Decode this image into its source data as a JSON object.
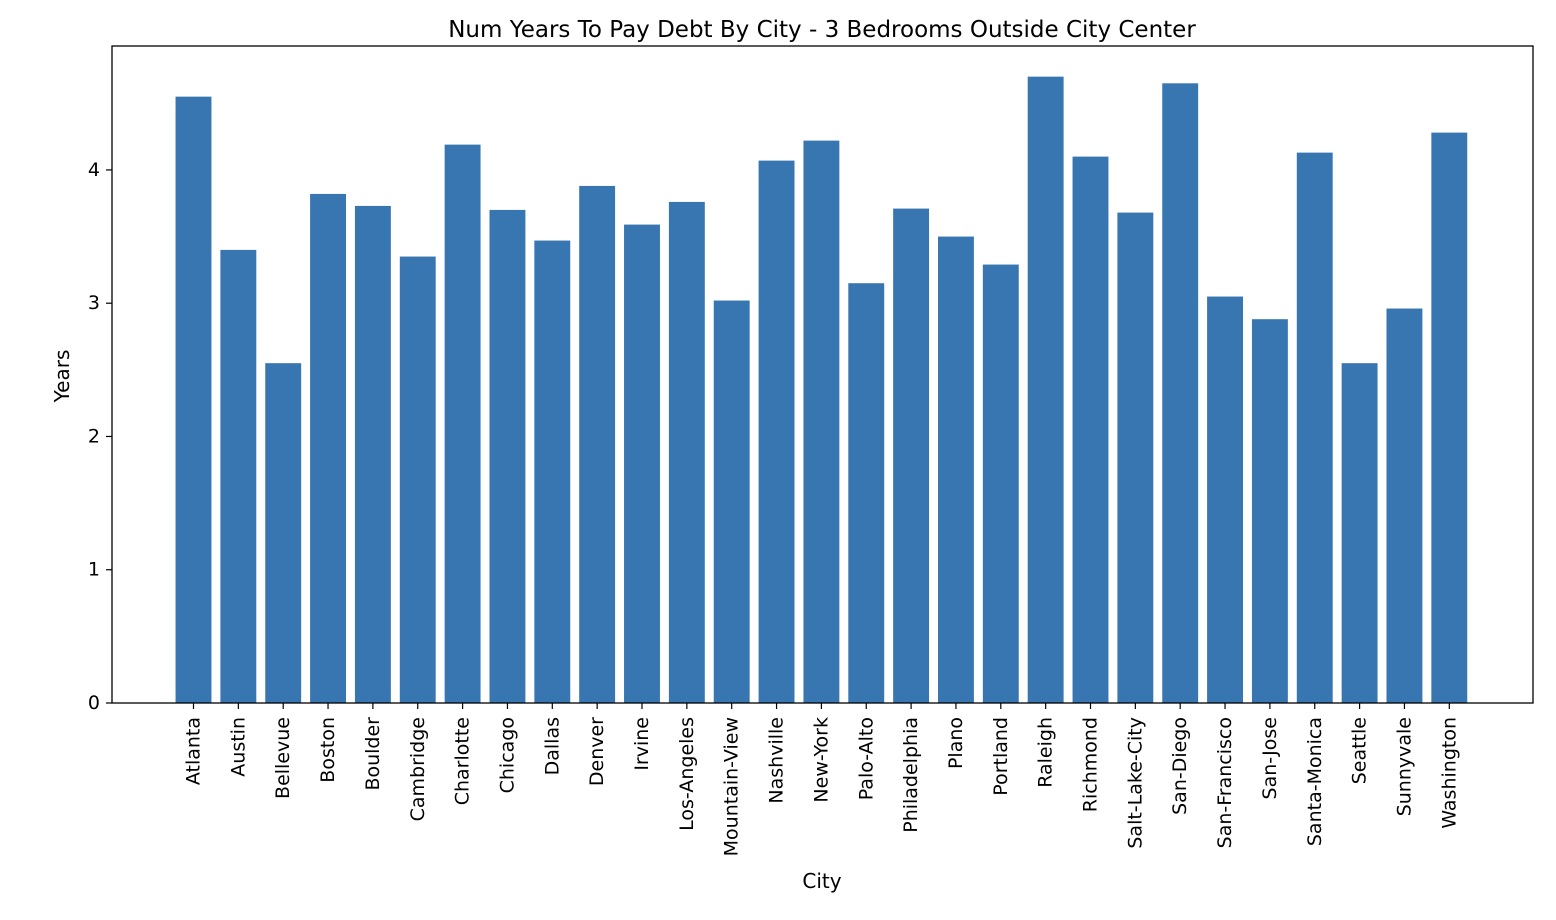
{
  "chart_data": {
    "type": "bar",
    "title": "Num Years To Pay Debt By City - 3 Bedrooms Outside City Center",
    "xlabel": "City",
    "ylabel": "Years",
    "ylim": [
      0,
      4.93
    ],
    "yticks": [
      0,
      1,
      2,
      3,
      4
    ],
    "grid": false,
    "bar_color": "#3776b0",
    "categories": [
      "Atlanta",
      "Austin",
      "Bellevue",
      "Boston",
      "Boulder",
      "Cambridge",
      "Charlotte",
      "Chicago",
      "Dallas",
      "Denver",
      "Irvine",
      "Los-Angeles",
      "Mountain-View",
      "Nashville",
      "New-York",
      "Palo-Alto",
      "Philadelphia",
      "Plano",
      "Portland",
      "Raleigh",
      "Richmond",
      "Salt-Lake-City",
      "San-Diego",
      "San-Francisco",
      "San-Jose",
      "Santa-Monica",
      "Seattle",
      "Sunnyvale",
      "Washington"
    ],
    "values": [
      4.55,
      3.4,
      2.55,
      3.82,
      3.73,
      3.35,
      4.19,
      3.7,
      3.47,
      3.88,
      3.59,
      3.76,
      3.02,
      4.07,
      4.22,
      3.15,
      3.71,
      3.5,
      3.29,
      4.7,
      4.1,
      3.68,
      4.65,
      3.05,
      2.88,
      4.13,
      2.55,
      2.96,
      4.28
    ]
  }
}
